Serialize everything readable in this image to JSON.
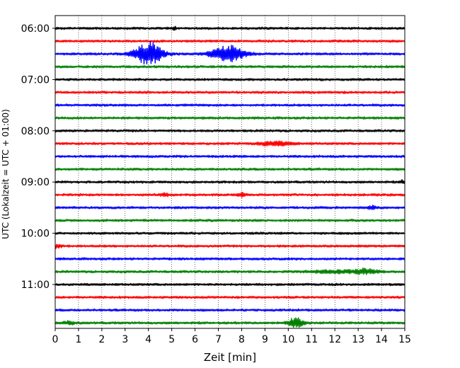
{
  "chart_data": {
    "type": "line",
    "title": "",
    "xlabel": "Zeit  [min]",
    "ylabel": "UTC (Lokalzeit = UTC + 01:00)",
    "xlim": [
      0,
      15
    ],
    "x_ticks": [
      "0",
      "1",
      "2",
      "3",
      "4",
      "5",
      "6",
      "7",
      "8",
      "9",
      "10",
      "11",
      "12",
      "13",
      "14",
      "15"
    ],
    "y_ticks": [
      {
        "label": "06:00",
        "trace": 0
      },
      {
        "label": "07:00",
        "trace": 4
      },
      {
        "label": "08:00",
        "trace": 8
      },
      {
        "label": "09:00",
        "trace": 12
      },
      {
        "label": "10:00",
        "trace": 16
      },
      {
        "label": "11:00",
        "trace": 20
      }
    ],
    "grid": "vertical dotted at each minute",
    "trace_interval_min": 15,
    "color_cycle": [
      "#000000",
      "#ff0000",
      "#0000ff",
      "#008000"
    ],
    "traces": [
      {
        "start": "06:00",
        "color": "#000000",
        "events": [
          {
            "t": 5.1,
            "amp": 0.4,
            "dur": 0.08
          }
        ]
      },
      {
        "start": "06:15",
        "color": "#ff0000",
        "events": []
      },
      {
        "start": "06:30",
        "color": "#0000ff",
        "events": [
          {
            "t": 4.0,
            "amp": 2.2,
            "dur": 0.7
          },
          {
            "t": 7.4,
            "amp": 1.6,
            "dur": 0.8
          }
        ]
      },
      {
        "start": "06:45",
        "color": "#008000",
        "events": []
      },
      {
        "start": "07:00",
        "color": "#000000",
        "events": []
      },
      {
        "start": "07:15",
        "color": "#ff0000",
        "events": []
      },
      {
        "start": "07:30",
        "color": "#0000ff",
        "events": []
      },
      {
        "start": "07:45",
        "color": "#008000",
        "events": []
      },
      {
        "start": "08:00",
        "color": "#000000",
        "events": []
      },
      {
        "start": "08:15",
        "color": "#ff0000",
        "events": [
          {
            "t": 9.4,
            "amp": 0.35,
            "dur": 0.9
          }
        ]
      },
      {
        "start": "08:30",
        "color": "#0000ff",
        "events": []
      },
      {
        "start": "08:45",
        "color": "#008000",
        "events": []
      },
      {
        "start": "09:00",
        "color": "#000000",
        "events": [
          {
            "t": 14.9,
            "amp": 0.3,
            "dur": 0.1
          }
        ]
      },
      {
        "start": "09:15",
        "color": "#ff0000",
        "events": [
          {
            "t": 8.0,
            "amp": 0.35,
            "dur": 0.2
          },
          {
            "t": 4.7,
            "amp": 0.2,
            "dur": 0.3
          }
        ]
      },
      {
        "start": "09:30",
        "color": "#0000ff",
        "events": [
          {
            "t": 13.6,
            "amp": 0.3,
            "dur": 0.2
          }
        ]
      },
      {
        "start": "09:45",
        "color": "#008000",
        "events": []
      },
      {
        "start": "10:00",
        "color": "#000000",
        "events": []
      },
      {
        "start": "10:15",
        "color": "#ff0000",
        "events": [
          {
            "t": 0.1,
            "amp": 0.35,
            "dur": 0.2
          }
        ]
      },
      {
        "start": "10:30",
        "color": "#0000ff",
        "events": []
      },
      {
        "start": "10:45",
        "color": "#008000",
        "events": [
          {
            "t": 13.3,
            "amp": 0.45,
            "dur": 0.6
          },
          {
            "t": 12.0,
            "amp": 0.25,
            "dur": 1.2
          }
        ]
      },
      {
        "start": "11:00",
        "color": "#000000",
        "events": []
      },
      {
        "start": "11:15",
        "color": "#ff0000",
        "events": []
      },
      {
        "start": "11:30",
        "color": "#0000ff",
        "events": []
      },
      {
        "start": "11:45",
        "color": "#008000",
        "events": [
          {
            "t": 10.3,
            "amp": 0.9,
            "dur": 0.4
          },
          {
            "t": 0.6,
            "amp": 0.25,
            "dur": 0.4
          }
        ]
      }
    ]
  }
}
